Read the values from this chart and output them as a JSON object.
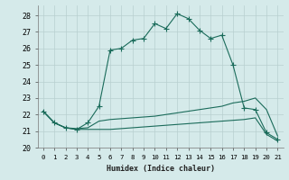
{
  "xlabel": "Humidex (Indice chaleur)",
  "background_color": "#d5eaea",
  "grid_color": "#b8cfcf",
  "line_color": "#1a6b5a",
  "xlim": [
    -0.5,
    21.5
  ],
  "ylim": [
    20.0,
    28.6
  ],
  "xticks": [
    0,
    1,
    2,
    3,
    4,
    5,
    6,
    7,
    8,
    9,
    10,
    11,
    12,
    13,
    14,
    15,
    16,
    17,
    18,
    19,
    20,
    21
  ],
  "yticks": [
    20,
    21,
    22,
    23,
    24,
    25,
    26,
    27,
    28
  ],
  "line1_x": [
    0,
    1,
    2,
    3,
    4,
    5,
    6,
    7,
    8,
    9,
    10,
    11,
    12,
    13,
    14,
    15,
    16,
    17,
    18,
    19,
    20,
    21
  ],
  "line1_y": [
    22.2,
    21.5,
    21.2,
    21.1,
    21.5,
    22.5,
    25.9,
    26.0,
    26.5,
    26.6,
    27.5,
    27.2,
    28.1,
    27.8,
    27.1,
    26.6,
    26.8,
    25.0,
    22.4,
    22.3,
    20.9,
    20.5
  ],
  "line2_x": [
    0,
    1,
    2,
    3,
    4,
    5,
    6,
    7,
    8,
    9,
    10,
    11,
    12,
    13,
    14,
    15,
    16,
    17,
    18,
    19,
    20,
    21
  ],
  "line2_y": [
    22.2,
    21.5,
    21.2,
    21.15,
    21.2,
    21.6,
    21.7,
    21.75,
    21.8,
    21.85,
    21.9,
    22.0,
    22.1,
    22.2,
    22.3,
    22.4,
    22.5,
    22.7,
    22.8,
    23.0,
    22.3,
    20.7
  ],
  "line3_x": [
    0,
    1,
    2,
    3,
    4,
    5,
    6,
    7,
    8,
    9,
    10,
    11,
    12,
    13,
    14,
    15,
    16,
    17,
    18,
    19,
    20,
    21
  ],
  "line3_y": [
    22.2,
    21.5,
    21.2,
    21.1,
    21.1,
    21.1,
    21.1,
    21.15,
    21.2,
    21.25,
    21.3,
    21.35,
    21.4,
    21.45,
    21.5,
    21.55,
    21.6,
    21.65,
    21.7,
    21.8,
    20.8,
    20.4
  ],
  "line1_markers": [
    0,
    1,
    2,
    3,
    4,
    5,
    6,
    7,
    8,
    9,
    10,
    11,
    12,
    13,
    14,
    15,
    16,
    17,
    18,
    19,
    20,
    21
  ]
}
